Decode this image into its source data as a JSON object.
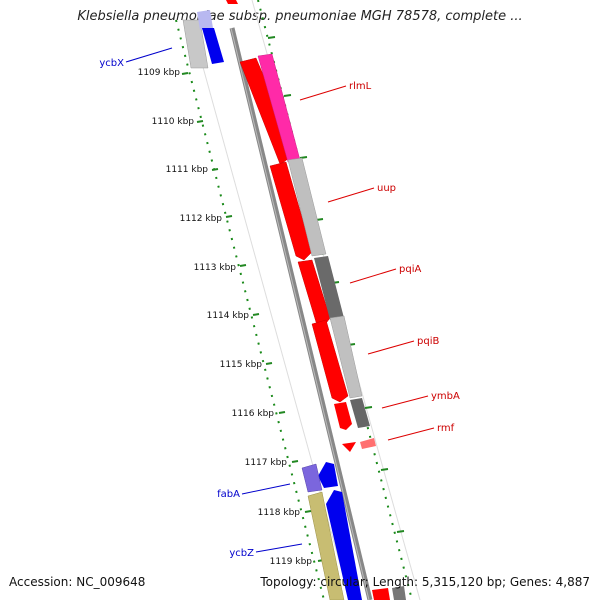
{
  "title": "Klebsiella pneumoniae subsp. pneumoniae MGH 78578, complete ...",
  "footer": {
    "accession": "Accession: NC_009648",
    "summary": "Topology: circular; Length: 5,315,120 bp; Genes: 4,887"
  },
  "colors": {
    "forward_gene": "#ff0000",
    "forward_label": "#cc0000",
    "reverse_label": "#0000cc",
    "tick": "#228822",
    "backbone": "#888888"
  },
  "kbp_ticks": [
    "1109 kbp",
    "1110 kbp",
    "1111 kbp",
    "1112 kbp",
    "1113 kbp",
    "1114 kbp",
    "1115 kbp",
    "1116 kbp",
    "1117 kbp",
    "1118 kbp",
    "1119 kbp"
  ],
  "forward_labels": [
    "rlmL",
    "uup",
    "pqiA",
    "pqiB",
    "ymbA",
    "rmf"
  ],
  "reverse_labels": [
    "ycbX",
    "fabA",
    "ycbZ"
  ]
}
